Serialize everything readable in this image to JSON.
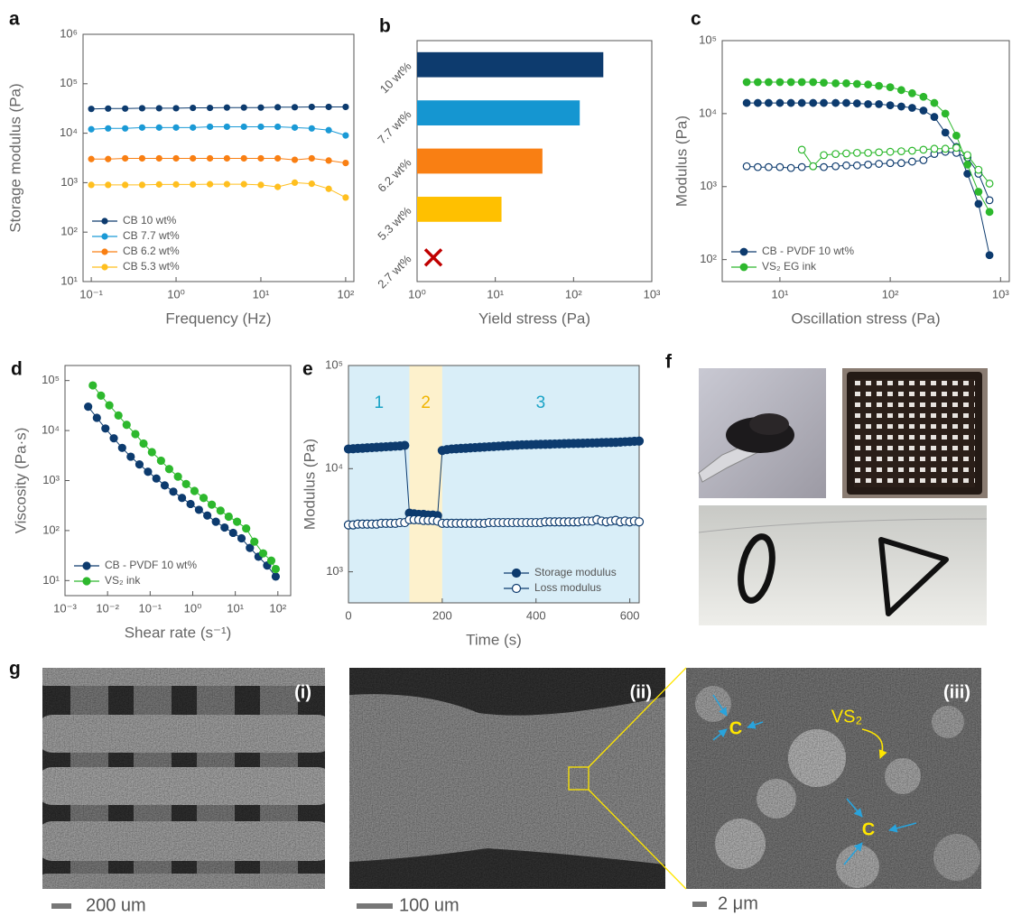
{
  "chart_data": [
    {
      "type": "line",
      "label": "a",
      "xlabel": "Frequency (Hz)",
      "ylabel": "Storage modulus (Pa)",
      "xlog": true,
      "ylog": true,
      "xlim": [
        0.08,
        125
      ],
      "ylim": [
        10,
        1000000
      ],
      "xticks": [
        {
          "value": 0.1,
          "label": "10⁻¹"
        },
        {
          "value": 1,
          "label": "10⁰"
        },
        {
          "value": 10,
          "label": "10¹"
        },
        {
          "value": 100,
          "label": "10²"
        }
      ],
      "yticks": [
        {
          "value": 10,
          "label": "10¹"
        },
        {
          "value": 100,
          "label": "10²"
        },
        {
          "value": 1000,
          "label": "10³"
        },
        {
          "value": 10000,
          "label": "10⁴"
        },
        {
          "value": 100000,
          "label": "10⁵"
        },
        {
          "value": 1000000,
          "label": "10⁶"
        }
      ],
      "legend": "lower left",
      "x": [
        0.1,
        0.158,
        0.251,
        0.398,
        0.631,
        1,
        1.58,
        2.51,
        3.98,
        6.31,
        10,
        15.8,
        25.1,
        39.8,
        63.1,
        100
      ],
      "series": [
        {
          "name": "CB 10 wt%",
          "color": "#0d3b6e",
          "values": [
            31000,
            31500,
            31500,
            32000,
            32000,
            32000,
            32500,
            32500,
            33000,
            33000,
            33000,
            33500,
            33500,
            34000,
            34000,
            34000
          ]
        },
        {
          "name": "CB 7.7 wt%",
          "color": "#1b9ad6",
          "values": [
            12000,
            12500,
            12500,
            13000,
            13000,
            13000,
            13000,
            13500,
            13500,
            13500,
            13500,
            13500,
            13000,
            12500,
            11500,
            9000
          ]
        },
        {
          "name": "CB 6.2 wt%",
          "color": "#f97f13",
          "values": [
            3000,
            3000,
            3100,
            3100,
            3100,
            3100,
            3100,
            3100,
            3100,
            3100,
            3100,
            3100,
            2900,
            3100,
            2800,
            2500
          ]
        },
        {
          "name": "CB 5.3 wt%",
          "color": "#ffbf1f",
          "values": [
            900,
            900,
            900,
            900,
            920,
            920,
            920,
            930,
            930,
            930,
            900,
            820,
            1000,
            950,
            750,
            500
          ]
        }
      ]
    },
    {
      "type": "barh",
      "label": "b",
      "xlabel": "Yield stress (Pa)",
      "xlog": true,
      "xlim": [
        1,
        1000
      ],
      "xticks": [
        {
          "value": 1,
          "label": "10⁰"
        },
        {
          "value": 10,
          "label": "10¹"
        },
        {
          "value": 100,
          "label": "10²"
        },
        {
          "value": 1000,
          "label": "10³"
        }
      ],
      "categories": [
        "10 wt%",
        "7.7 wt%",
        "6.2 wt%",
        "5.3 wt%",
        "2.7 wt%"
      ],
      "values": [
        240,
        120,
        40,
        12,
        null
      ],
      "colors": [
        "#0d3b6e",
        "#1596d1",
        "#f97f13",
        "#ffc000",
        "#c00000"
      ]
    },
    {
      "type": "line",
      "label": "c",
      "xlabel": "Oscillation stress (Pa)",
      "ylabel": "Modulus (Pa)",
      "xlog": true,
      "ylog": true,
      "xlim": [
        3,
        1200
      ],
      "ylim": [
        50,
        100000
      ],
      "xticks": [
        {
          "value": 10,
          "label": "10¹"
        },
        {
          "value": 100,
          "label": "10²"
        },
        {
          "value": 1000,
          "label": "10³"
        }
      ],
      "yticks": [
        {
          "value": 100,
          "label": "10²"
        },
        {
          "value": 1000,
          "label": "10³"
        },
        {
          "value": 10000,
          "label": "10⁴"
        },
        {
          "value": 100000,
          "label": "10⁵"
        }
      ],
      "legend": "lower left",
      "x": [
        5,
        6.3,
        7.9,
        10,
        12.6,
        15.8,
        20,
        25,
        32,
        40,
        50,
        63,
        79,
        100,
        126,
        158,
        200,
        251,
        316,
        398,
        501,
        631,
        794
      ],
      "series": [
        {
          "name": "CB - PVDF 10 wt%",
          "color": "#0d3b6e",
          "values": [
            14000,
            14000,
            14000,
            14000,
            14000,
            14000,
            14000,
            14000,
            14000,
            14000,
            13800,
            13500,
            13500,
            13000,
            12500,
            12000,
            11000,
            9000,
            5500,
            3500,
            1500,
            580,
            115
          ]
        },
        {
          "color": "#0d3b6e",
          "marker": "open",
          "values": [
            1900,
            1850,
            1850,
            1850,
            1800,
            1850,
            1900,
            1850,
            1900,
            1950,
            1950,
            2000,
            2050,
            2100,
            2100,
            2200,
            2300,
            2800,
            3000,
            2900,
            2500,
            1500,
            650
          ]
        },
        {
          "name": "VS₂ EG ink",
          "color": "#2db82d",
          "values": [
            27000,
            27000,
            27000,
            27000,
            27000,
            27000,
            27000,
            26500,
            26000,
            26000,
            25500,
            25000,
            24000,
            23000,
            21000,
            19000,
            17000,
            14000,
            10000,
            5000,
            2000,
            850,
            450
          ]
        },
        {
          "color": "#2db82d",
          "marker": "open",
          "values": [
            null,
            null,
            null,
            null,
            null,
            3200,
            1900,
            2700,
            2800,
            2850,
            2900,
            2900,
            2950,
            3000,
            3050,
            3100,
            3200,
            3300,
            3300,
            3400,
            2700,
            1700,
            1100
          ]
        }
      ]
    },
    {
      "type": "line",
      "label": "d",
      "xlabel": "Shear rate (s⁻¹)",
      "ylabel": "Viscosity (Pa·s)",
      "xlog": true,
      "ylog": true,
      "xlim": [
        0.001,
        200
      ],
      "ylim": [
        5,
        200000
      ],
      "xticks": [
        {
          "value": 0.001,
          "label": "10⁻³"
        },
        {
          "value": 0.01,
          "label": "10⁻²"
        },
        {
          "value": 0.1,
          "label": "10⁻¹"
        },
        {
          "value": 1,
          "label": "10⁰"
        },
        {
          "value": 10,
          "label": "10¹"
        },
        {
          "value": 100,
          "label": "10²"
        }
      ],
      "yticks": [
        {
          "value": 10,
          "label": "10¹"
        },
        {
          "value": 100,
          "label": "10²"
        },
        {
          "value": 1000,
          "label": "10³"
        },
        {
          "value": 10000,
          "label": "10⁴"
        },
        {
          "value": 100000,
          "label": "10⁵"
        }
      ],
      "legend": "lower left",
      "series": [
        {
          "name": "CB - PVDF 10 wt%",
          "color": "#0d3b6e",
          "x": [
            0.0035,
            0.0056,
            0.0089,
            0.014,
            0.022,
            0.035,
            0.056,
            0.089,
            0.14,
            0.22,
            0.35,
            0.56,
            0.89,
            1.4,
            2.2,
            3.5,
            5.6,
            8.9,
            14,
            22,
            35,
            56,
            89
          ],
          "values": [
            30000,
            18000,
            11000,
            7000,
            4500,
            3000,
            2100,
            1500,
            1100,
            800,
            600,
            450,
            340,
            260,
            200,
            150,
            115,
            90,
            70,
            45,
            30,
            20,
            12
          ]
        },
        {
          "name": "VS₂ ink",
          "color": "#2db82d",
          "x": [
            0.0045,
            0.007,
            0.011,
            0.018,
            0.028,
            0.045,
            0.07,
            0.11,
            0.18,
            0.28,
            0.45,
            0.7,
            1.1,
            1.8,
            2.8,
            4.5,
            7,
            11,
            18,
            28,
            45,
            70,
            89
          ],
          "values": [
            80000,
            50000,
            32000,
            20000,
            13000,
            8500,
            5500,
            3700,
            2500,
            1700,
            1200,
            850,
            620,
            450,
            330,
            250,
            190,
            150,
            110,
            60,
            35,
            25,
            17
          ]
        }
      ]
    },
    {
      "type": "line",
      "label": "e",
      "xlabel": "Time (s)",
      "ylabel": "Modulus (Pa)",
      "ylog": true,
      "xlim": [
        0,
        620
      ],
      "ylim": [
        500,
        100000
      ],
      "xticks": [
        0,
        200,
        400,
        600
      ],
      "yticks": [
        {
          "value": 1000,
          "label": "10³"
        },
        {
          "value": 10000,
          "label": "10⁴"
        },
        {
          "value": 100000,
          "label": "10⁵"
        }
      ],
      "legend": "lower right",
      "regions": [
        {
          "label": "1",
          "range": [
            0,
            130
          ],
          "color": "#d9eef8",
          "label_color": "#1aa3c6"
        },
        {
          "label": "2",
          "range": [
            130,
            200
          ],
          "color": "#fdf1cc",
          "label_color": "#f0b400"
        },
        {
          "label": "3",
          "range": [
            200,
            620
          ],
          "color": "#d9eef8",
          "label_color": "#1aa3c6"
        }
      ],
      "x": [
        0,
        10,
        20,
        30,
        40,
        50,
        60,
        70,
        80,
        90,
        100,
        110,
        120,
        130,
        140,
        150,
        160,
        170,
        180,
        190,
        200,
        210,
        220,
        230,
        240,
        250,
        260,
        270,
        280,
        290,
        300,
        310,
        320,
        330,
        340,
        350,
        360,
        370,
        380,
        390,
        400,
        410,
        420,
        430,
        440,
        450,
        460,
        470,
        480,
        490,
        500,
        510,
        520,
        530,
        540,
        550,
        560,
        570,
        580,
        590,
        600,
        610,
        620
      ],
      "series": [
        {
          "name": "Storage modulus",
          "color": "#0d3b6e",
          "values": [
            15500,
            15600,
            15700,
            15800,
            15900,
            16000,
            16100,
            16200,
            16300,
            16400,
            16500,
            16600,
            16800,
            3700,
            3650,
            3600,
            3600,
            3550,
            3550,
            3500,
            15000,
            15300,
            15500,
            15600,
            15700,
            15800,
            15900,
            16000,
            16100,
            16200,
            16300,
            16400,
            16500,
            16600,
            16700,
            16800,
            16900,
            17000,
            17050,
            17100,
            17150,
            17200,
            17250,
            17300,
            17350,
            17400,
            17450,
            17500,
            17550,
            17600,
            17650,
            17700,
            17750,
            17800,
            17850,
            17900,
            17950,
            18000,
            18100,
            18200,
            18300,
            18400,
            18500
          ]
        },
        {
          "name": "Loss modulus",
          "color": "#0d3b6e",
          "marker": "open",
          "values": [
            2850,
            2850,
            2900,
            2900,
            2900,
            2900,
            2900,
            2950,
            2950,
            2950,
            2950,
            3000,
            3000,
            3200,
            3200,
            3200,
            3150,
            3150,
            3150,
            3100,
            2950,
            2950,
            2950,
            2950,
            2950,
            2950,
            2950,
            2950,
            2950,
            2950,
            3000,
            3000,
            3000,
            3000,
            3000,
            3000,
            3000,
            3000,
            3000,
            3000,
            3000,
            3000,
            3050,
            3050,
            3050,
            3050,
            3050,
            3050,
            3050,
            3050,
            3100,
            3100,
            3100,
            3200,
            3100,
            3050,
            3100,
            3150,
            3050,
            3100,
            3050,
            3100,
            3050
          ]
        }
      ]
    }
  ],
  "photos": {
    "label": "f"
  },
  "sem": {
    "label": "g",
    "images": [
      {
        "tag": "(i)",
        "scale": "200 um"
      },
      {
        "tag": "(ii)",
        "scale": "100 um"
      },
      {
        "tag": "(iii)",
        "scale": "2 μm",
        "annotations": [
          "C",
          "VS₂",
          "C"
        ]
      }
    ]
  }
}
